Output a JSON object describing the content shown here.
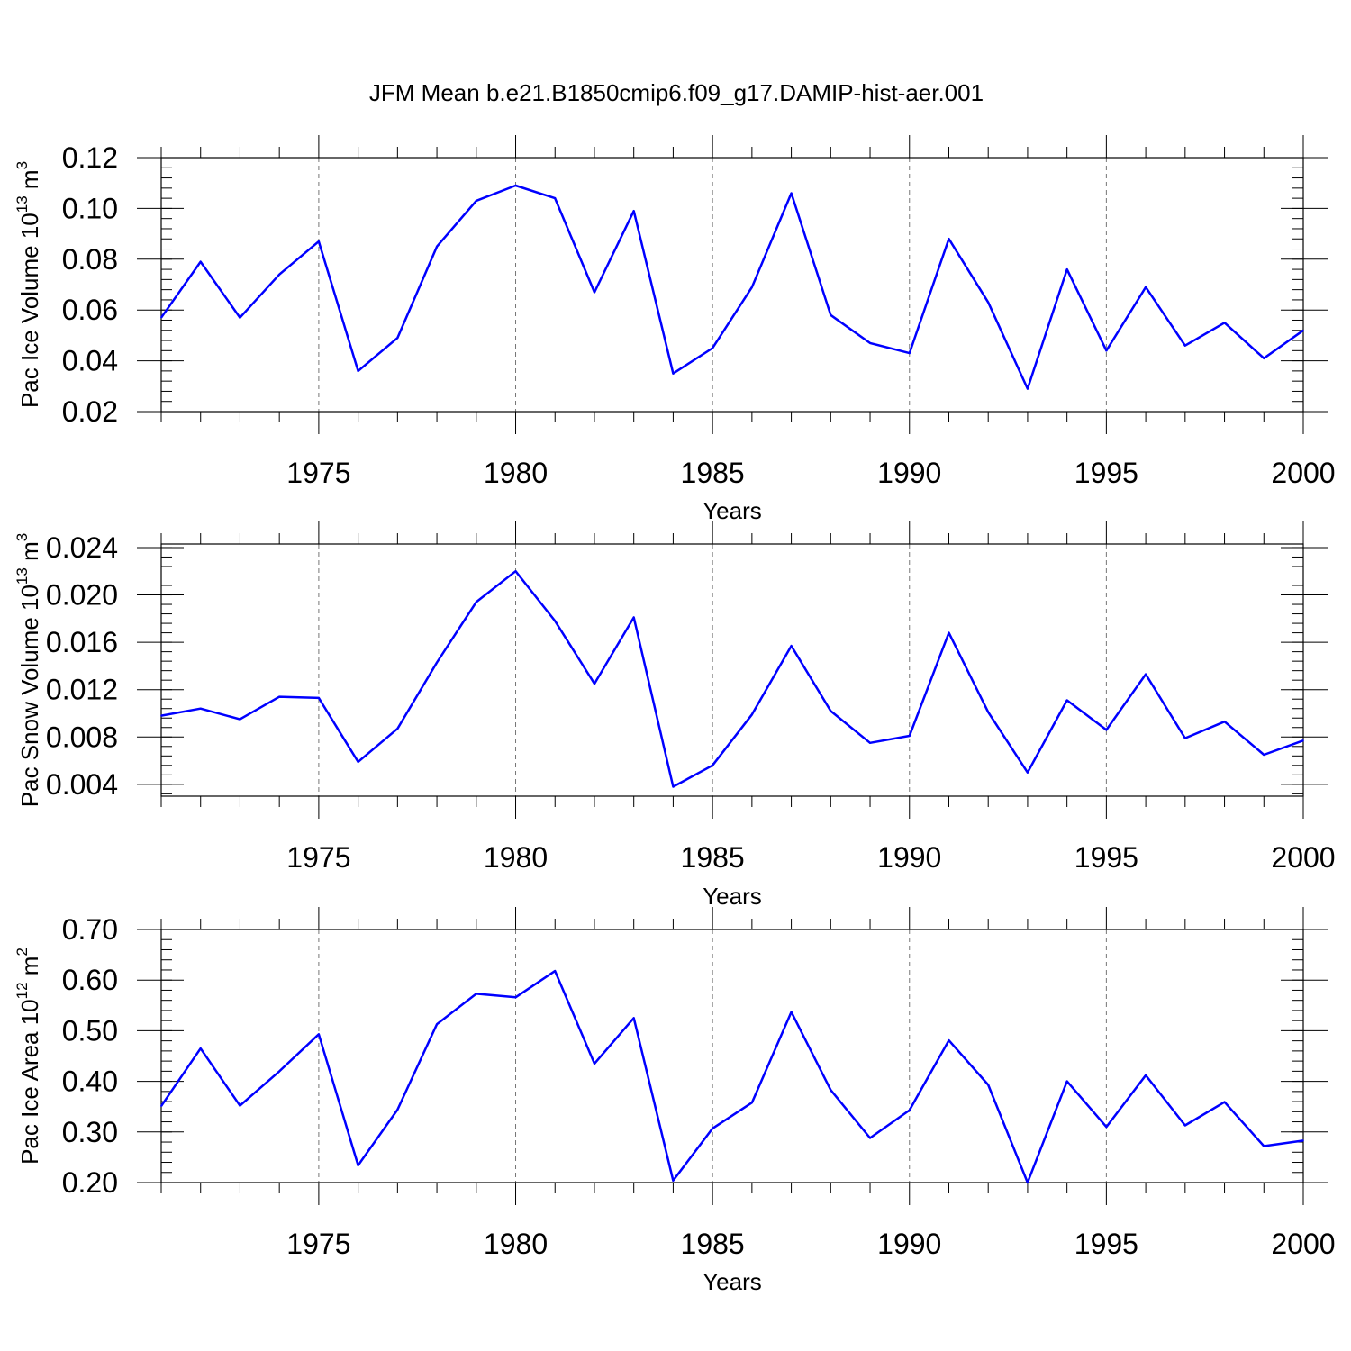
{
  "title": "JFM Mean b.e21.B1850cmip6.f09_g17.DAMIP-hist-aer.001",
  "line_color": "#0000ff",
  "chart_data": [
    {
      "type": "line",
      "ylabel": {
        "base": "Pac Ice Volume 10",
        "exp": "13",
        "unit": " m",
        "unit_exp": "3"
      },
      "xlabel": "Years",
      "xlim": [
        1971,
        2000
      ],
      "ylim": [
        0.02,
        0.12
      ],
      "yticks": [
        "0.02",
        "0.04",
        "0.06",
        "0.08",
        "0.10",
        "0.12"
      ],
      "xticks": [
        "1975",
        "1980",
        "1985",
        "1990",
        "1995",
        "2000"
      ],
      "x": [
        1971,
        1972,
        1973,
        1974,
        1975,
        1976,
        1977,
        1978,
        1979,
        1980,
        1981,
        1982,
        1983,
        1984,
        1985,
        1986,
        1987,
        1988,
        1989,
        1990,
        1991,
        1992,
        1993,
        1994,
        1995,
        1996,
        1997,
        1998,
        1999,
        2000
      ],
      "values": [
        0.057,
        0.079,
        0.057,
        0.074,
        0.087,
        0.036,
        0.049,
        0.085,
        0.103,
        0.109,
        0.104,
        0.067,
        0.099,
        0.035,
        0.045,
        0.069,
        0.106,
        0.058,
        0.047,
        0.043,
        0.088,
        0.063,
        0.029,
        0.076,
        0.044,
        0.069,
        0.046,
        0.055,
        0.041,
        0.052
      ],
      "grid": "dashed vertical at major x ticks"
    },
    {
      "type": "line",
      "ylabel": {
        "base": "Pac Snow Volume 10",
        "exp": "13",
        "unit": " m",
        "unit_exp": "3"
      },
      "xlabel": "Years",
      "xlim": [
        1971,
        2000
      ],
      "ylim": [
        0.003,
        0.0243
      ],
      "yticks": [
        "0.004",
        "0.008",
        "0.012",
        "0.016",
        "0.020",
        "0.024"
      ],
      "xticks": [
        "1975",
        "1980",
        "1985",
        "1990",
        "1995",
        "2000"
      ],
      "x": [
        1971,
        1972,
        1973,
        1974,
        1975,
        1976,
        1977,
        1978,
        1979,
        1980,
        1981,
        1982,
        1983,
        1984,
        1985,
        1986,
        1987,
        1988,
        1989,
        1990,
        1991,
        1992,
        1993,
        1994,
        1995,
        1996,
        1997,
        1998,
        1999,
        2000
      ],
      "values": [
        0.0098,
        0.0104,
        0.0095,
        0.0114,
        0.0113,
        0.0059,
        0.0087,
        0.0143,
        0.0194,
        0.022,
        0.0178,
        0.0125,
        0.0181,
        0.0038,
        0.0056,
        0.0099,
        0.0157,
        0.0102,
        0.0075,
        0.0081,
        0.0168,
        0.0101,
        0.005,
        0.0111,
        0.0086,
        0.0133,
        0.0079,
        0.0093,
        0.0065,
        0.0077
      ],
      "grid": "dashed vertical at major x ticks"
    },
    {
      "type": "line",
      "ylabel": {
        "base": "Pac Ice Area 10",
        "exp": "12",
        "unit": " m",
        "unit_exp": "2"
      },
      "xlabel": "Years",
      "xlim": [
        1971,
        2000
      ],
      "ylim": [
        0.2,
        0.7
      ],
      "yticks": [
        "0.20",
        "0.30",
        "0.40",
        "0.50",
        "0.60",
        "0.70"
      ],
      "xticks": [
        "1975",
        "1980",
        "1985",
        "1990",
        "1995",
        "2000"
      ],
      "x": [
        1971,
        1972,
        1973,
        1974,
        1975,
        1976,
        1977,
        1978,
        1979,
        1980,
        1981,
        1982,
        1983,
        1984,
        1985,
        1986,
        1987,
        1988,
        1989,
        1990,
        1991,
        1992,
        1993,
        1994,
        1995,
        1996,
        1997,
        1998,
        1999,
        2000
      ],
      "values": [
        0.351,
        0.465,
        0.352,
        0.42,
        0.493,
        0.234,
        0.344,
        0.513,
        0.573,
        0.566,
        0.618,
        0.435,
        0.525,
        0.204,
        0.307,
        0.358,
        0.537,
        0.383,
        0.288,
        0.343,
        0.481,
        0.393,
        0.2,
        0.4,
        0.31,
        0.412,
        0.313,
        0.359,
        0.272,
        0.283
      ],
      "grid": "dashed vertical at major x ticks"
    }
  ]
}
